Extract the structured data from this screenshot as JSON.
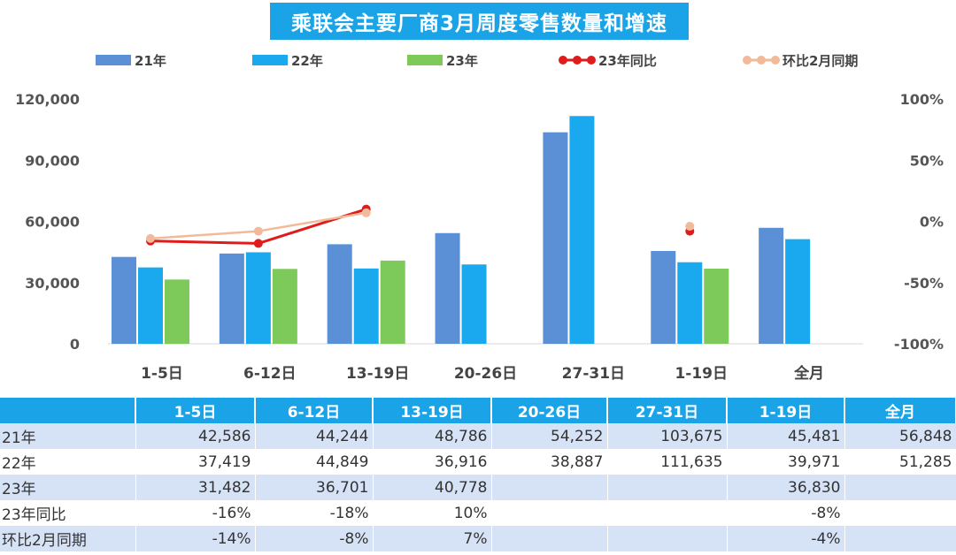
{
  "title": "乘联会主要厂商3月周度零售数量和增速",
  "chart_data": {
    "type": "bar",
    "title": "乘联会主要厂商3月周度零售数量和增速",
    "categories": [
      "1-5日",
      "6-12日",
      "13-19日",
      "20-26日",
      "27-31日",
      "1-19日",
      "全月"
    ],
    "series": [
      {
        "name": "21年",
        "type": "bar",
        "color": "#5b8fd6",
        "values": [
          42586,
          44244,
          48786,
          54252,
          103675,
          45481,
          56848
        ]
      },
      {
        "name": "22年",
        "type": "bar",
        "color": "#1aa8ee",
        "values": [
          37419,
          44849,
          36916,
          38887,
          111635,
          39971,
          51285
        ]
      },
      {
        "name": "23年",
        "type": "bar",
        "color": "#7dc95a",
        "values": [
          31482,
          36701,
          40778,
          null,
          null,
          36830,
          null
        ]
      },
      {
        "name": "23年同比",
        "type": "line",
        "axis": "right",
        "color": "#e01b1b",
        "values": [
          -16,
          -18,
          10,
          null,
          null,
          -8,
          null
        ]
      },
      {
        "name": "环比2月同期",
        "type": "line",
        "axis": "right",
        "color": "#f2b99a",
        "values": [
          -14,
          -8,
          7,
          null,
          null,
          -4,
          null
        ]
      }
    ],
    "left_axis": {
      "min": 0,
      "max": 120000,
      "ticks": [
        "0",
        "30,000",
        "60,000",
        "90,000",
        "120,000"
      ]
    },
    "right_axis": {
      "min": -100,
      "max": 100,
      "ticks": [
        "-100%",
        "-50%",
        "0%",
        "50%",
        "100%"
      ]
    },
    "legend_position": "top"
  },
  "table": {
    "header": [
      "",
      "1-5日",
      "6-12日",
      "13-19日",
      "20-26日",
      "27-31日",
      "1-19日",
      "全月"
    ],
    "rows": [
      {
        "label": "21年",
        "cells": [
          "42,586",
          "44,244",
          "48,786",
          "54,252",
          "103,675",
          "45,481",
          "56,848"
        ]
      },
      {
        "label": "22年",
        "cells": [
          "37,419",
          "44,849",
          "36,916",
          "38,887",
          "111,635",
          "39,971",
          "51,285"
        ]
      },
      {
        "label": "23年",
        "cells": [
          "31,482",
          "36,701",
          "40,778",
          "",
          "",
          "36,830",
          ""
        ]
      },
      {
        "label": "23年同比",
        "cells": [
          "-16%",
          "-18%",
          "10%",
          "",
          "",
          "-8%",
          ""
        ]
      },
      {
        "label": "环比2月同期",
        "cells": [
          "-14%",
          "-8%",
          "7%",
          "",
          "",
          "-4%",
          ""
        ]
      }
    ]
  }
}
